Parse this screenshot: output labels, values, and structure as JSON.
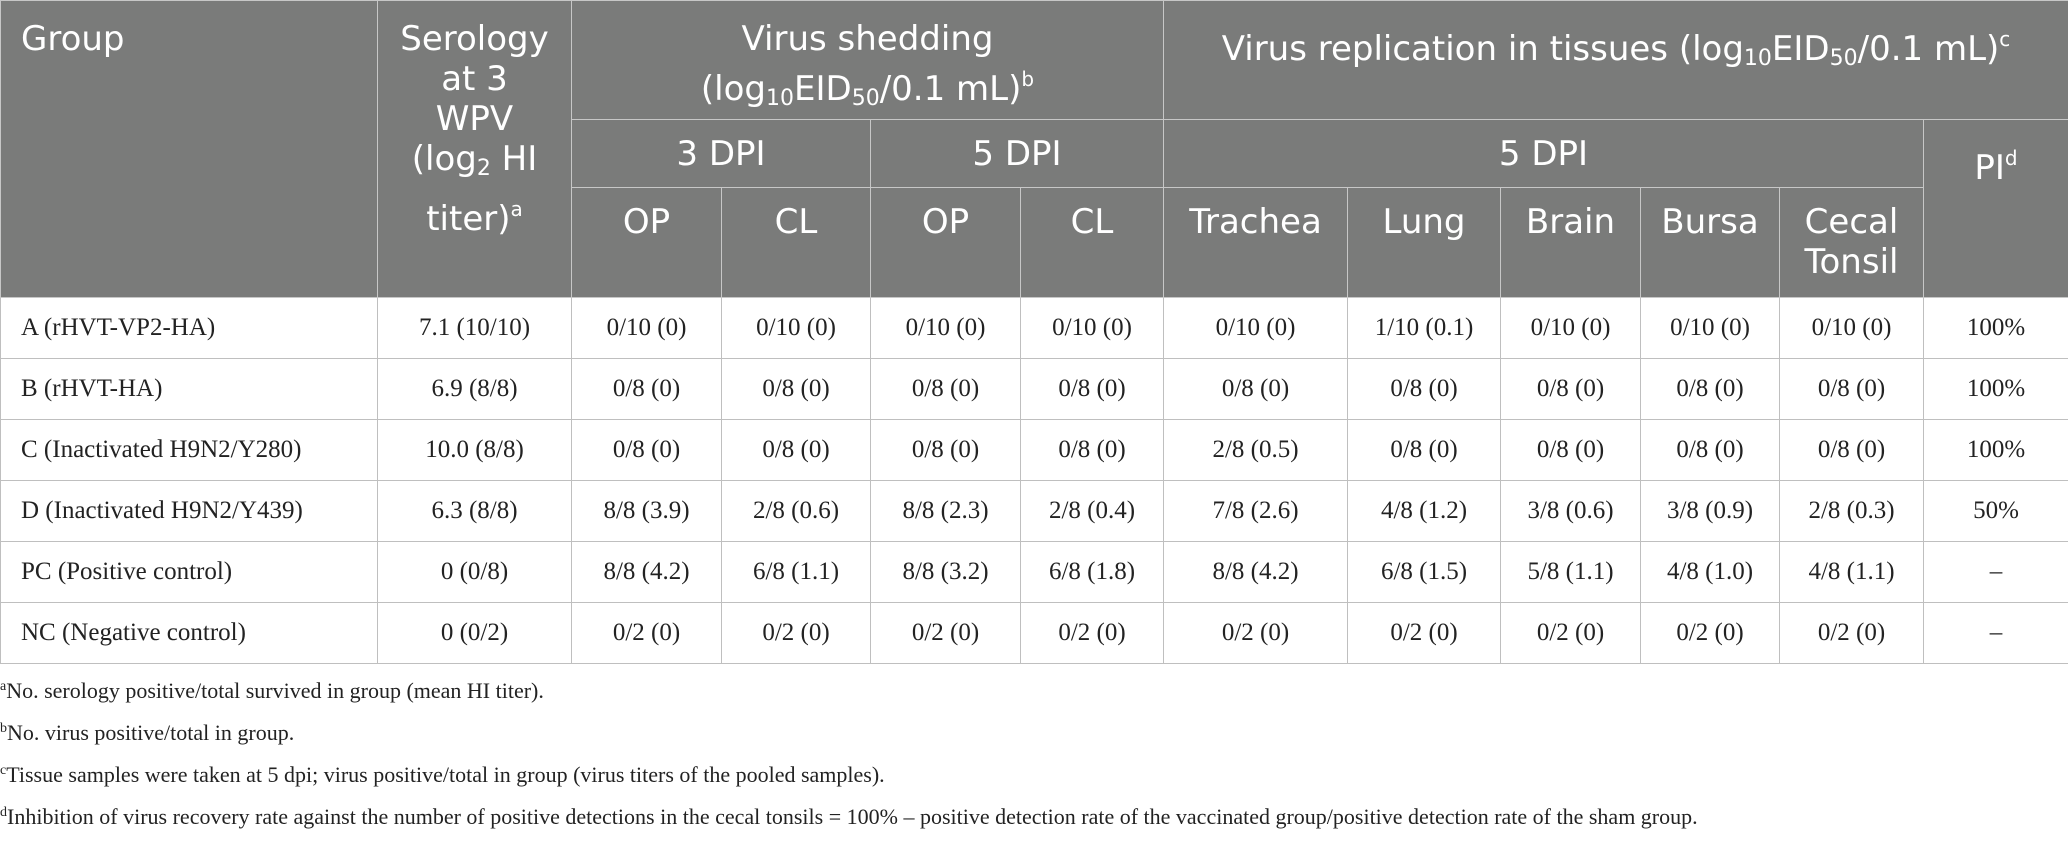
{
  "headers": {
    "group": "Group",
    "serology": [
      "Serology",
      "at 3",
      "WPV",
      "(log",
      "2",
      " HI",
      "titer)",
      "a"
    ],
    "virus_shedding": [
      "Virus shedding",
      "(log",
      "10",
      "EID",
      "50",
      "/0.1 mL)",
      "b"
    ],
    "virus_replication": [
      "Virus replication in tissues (log",
      "10",
      "EID",
      "50",
      "/0.1 mL)",
      "c"
    ],
    "dpi3": "3 DPI",
    "dpi5_shed": "5 DPI",
    "dpi5_tissue": "5 DPI",
    "pi": "PI",
    "pi_sup": "d",
    "cols": [
      "OP",
      "CL",
      "OP",
      "CL",
      "Trachea",
      "Lung",
      "Brain",
      "Bursa",
      "Cecal",
      "Tonsil"
    ]
  },
  "rows": [
    {
      "group": "A (rHVT-VP2-HA)",
      "cells": [
        "7.1 (10/10)",
        "0/10 (0)",
        "0/10 (0)",
        "0/10 (0)",
        "0/10 (0)",
        "0/10 (0)",
        "1/10 (0.1)",
        "0/10 (0)",
        "0/10 (0)",
        "0/10 (0)",
        "100%"
      ]
    },
    {
      "group": "B (rHVT-HA)",
      "cells": [
        "6.9 (8/8)",
        "0/8 (0)",
        "0/8 (0)",
        "0/8 (0)",
        "0/8 (0)",
        "0/8 (0)",
        "0/8 (0)",
        "0/8 (0)",
        "0/8 (0)",
        "0/8 (0)",
        "100%"
      ]
    },
    {
      "group": "C (Inactivated H9N2/Y280)",
      "cells": [
        "10.0 (8/8)",
        "0/8 (0)",
        "0/8 (0)",
        "0/8 (0)",
        "0/8 (0)",
        "2/8 (0.5)",
        "0/8 (0)",
        "0/8 (0)",
        "0/8 (0)",
        "0/8 (0)",
        "100%"
      ]
    },
    {
      "group": "D (Inactivated H9N2/Y439)",
      "cells": [
        "6.3 (8/8)",
        "8/8 (3.9)",
        "2/8 (0.6)",
        "8/8 (2.3)",
        "2/8 (0.4)",
        "7/8 (2.6)",
        "4/8 (1.2)",
        "3/8 (0.6)",
        "3/8 (0.9)",
        "2/8 (0.3)",
        "50%"
      ]
    },
    {
      "group": "PC (Positive control)",
      "cells": [
        "0 (0/8)",
        "8/8 (4.2)",
        "6/8 (1.1)",
        "8/8 (3.2)",
        "6/8 (1.8)",
        "8/8 (4.2)",
        "6/8 (1.5)",
        "5/8 (1.1)",
        "4/8 (1.0)",
        "4/8 (1.1)",
        "–"
      ]
    },
    {
      "group": "NC (Negative control)",
      "cells": [
        "0 (0/2)",
        "0/2 (0)",
        "0/2 (0)",
        "0/2 (0)",
        "0/2 (0)",
        "0/2 (0)",
        "0/2 (0)",
        "0/2 (0)",
        "0/2 (0)",
        "0/2 (0)",
        "–"
      ]
    }
  ],
  "footnotes": [
    {
      "mark": "a",
      "text": "No. serology positive/total survived in group (mean HI titer)."
    },
    {
      "mark": "b",
      "text": "No. virus positive/total in group."
    },
    {
      "mark": "c",
      "text": "Tissue samples were taken at 5 dpi; virus positive/total in group (virus titers of the pooled samples)."
    },
    {
      "mark": "d",
      "text": "Inhibition of virus recovery rate against the number of positive detections in the cecal tonsils = 100% – positive detection rate of the vaccinated group/positive detection rate of the sham group."
    }
  ]
}
